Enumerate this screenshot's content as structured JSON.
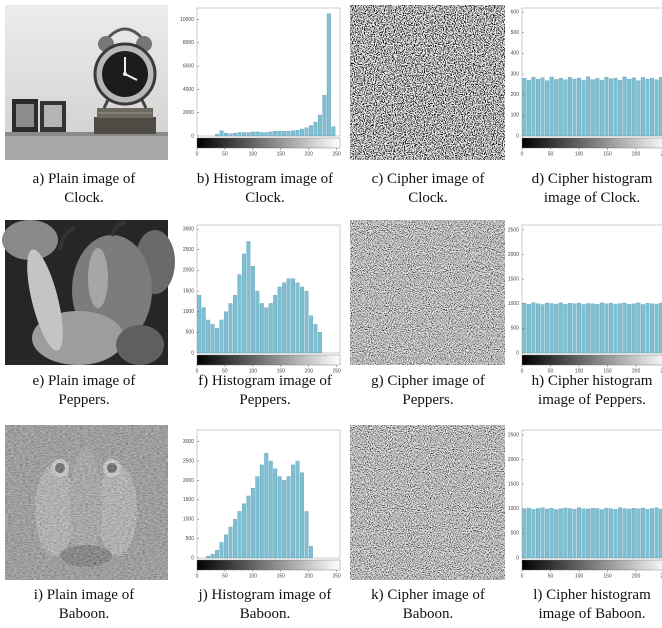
{
  "panels": [
    {
      "caption": [
        "a) Plain image of",
        "Clock."
      ]
    },
    {
      "caption": [
        "b) Histogram image of",
        "Clock."
      ],
      "chart_data": {
        "type": "histogram",
        "xlim": [
          0,
          256
        ],
        "ylim": [
          0,
          11000
        ],
        "xticks": [
          0,
          50,
          100,
          150,
          200,
          250
        ],
        "yticks": [
          0,
          2000,
          4000,
          6000,
          8000,
          10000
        ],
        "color": "#7fbfd3",
        "values": [
          0,
          0,
          0,
          0,
          150,
          450,
          250,
          200,
          250,
          300,
          300,
          300,
          350,
          350,
          300,
          300,
          350,
          400,
          400,
          400,
          400,
          450,
          500,
          600,
          700,
          900,
          1200,
          1800,
          3500,
          10500,
          800,
          0
        ]
      }
    },
    {
      "caption": [
        "c) Cipher image of",
        "Clock."
      ]
    },
    {
      "caption": [
        "d) Cipher histogram",
        "image of Clock."
      ],
      "chart_data": {
        "type": "histogram",
        "xlim": [
          0,
          256
        ],
        "ylim": [
          0,
          620
        ],
        "xticks": [
          0,
          50,
          100,
          150,
          200,
          250
        ],
        "yticks": [
          0,
          100,
          200,
          300,
          400,
          500,
          600
        ],
        "color": "#7fbfd3",
        "values": [
          280,
          270,
          285,
          275,
          282,
          268,
          286,
          274,
          280,
          272,
          284,
          276,
          281,
          269,
          287,
          273,
          279,
          271,
          285,
          277,
          280,
          270,
          286,
          275,
          282,
          268,
          284,
          276,
          280,
          272,
          285,
          278
        ]
      }
    },
    {
      "caption": [
        "e) Plain image of",
        "Peppers."
      ]
    },
    {
      "caption": [
        "f) Histogram image of",
        "Peppers."
      ],
      "chart_data": {
        "type": "histogram",
        "xlim": [
          0,
          256
        ],
        "ylim": [
          0,
          3100
        ],
        "xticks": [
          0,
          50,
          100,
          150,
          200,
          250
        ],
        "yticks": [
          0,
          500,
          1000,
          1500,
          2000,
          2500,
          3000
        ],
        "color": "#7fbfd3",
        "values": [
          1400,
          1100,
          800,
          700,
          600,
          800,
          1000,
          1200,
          1400,
          1900,
          2400,
          2700,
          2100,
          1500,
          1200,
          1100,
          1200,
          1400,
          1600,
          1700,
          1800,
          1800,
          1700,
          1600,
          1500,
          900,
          700,
          500,
          0,
          0,
          0,
          0
        ]
      }
    },
    {
      "caption": [
        "g) Cipher image of",
        "Peppers."
      ]
    },
    {
      "caption": [
        "h) Cipher histogram",
        "image of Peppers."
      ],
      "chart_data": {
        "type": "histogram",
        "xlim": [
          0,
          256
        ],
        "ylim": [
          0,
          2600
        ],
        "xticks": [
          0,
          50,
          100,
          150,
          200,
          250
        ],
        "yticks": [
          0,
          500,
          1000,
          1500,
          2000,
          2500
        ],
        "color": "#7fbfd3",
        "values": [
          1010,
          990,
          1020,
          1000,
          985,
          1015,
          1005,
          995,
          1020,
          990,
          1010,
          1000,
          1015,
          985,
          1005,
          1000,
          990,
          1020,
          1000,
          1010,
          995,
          1005,
          1015,
          990,
          1000,
          1020,
          985,
          1010,
          1000,
          995,
          1015,
          1005
        ]
      }
    },
    {
      "caption": [
        "i) Plain image of",
        "Baboon."
      ]
    },
    {
      "caption": [
        "j) Histogram image of",
        "Baboon."
      ],
      "chart_data": {
        "type": "histogram",
        "xlim": [
          0,
          256
        ],
        "ylim": [
          0,
          3300
        ],
        "xticks": [
          0,
          50,
          100,
          150,
          200,
          250
        ],
        "yticks": [
          0,
          500,
          1000,
          1500,
          2000,
          2500,
          3000
        ],
        "color": "#7fbfd3",
        "values": [
          0,
          0,
          50,
          100,
          200,
          400,
          600,
          800,
          1000,
          1200,
          1400,
          1600,
          1800,
          2100,
          2400,
          2700,
          2500,
          2300,
          2100,
          2000,
          2100,
          2400,
          2500,
          2200,
          1200,
          300,
          0,
          0,
          0,
          0,
          0,
          0
        ]
      }
    },
    {
      "caption": [
        "k) Cipher image of",
        "Baboon."
      ]
    },
    {
      "caption": [
        "l) Cipher histogram",
        "image of Baboon."
      ],
      "chart_data": {
        "type": "histogram",
        "xlim": [
          0,
          256
        ],
        "ylim": [
          0,
          2600
        ],
        "xticks": [
          0,
          50,
          100,
          150,
          200,
          250
        ],
        "yticks": [
          0,
          500,
          1000,
          1500,
          2000,
          2500
        ],
        "color": "#7fbfd3",
        "values": [
          1000,
          1015,
          990,
          1005,
          1020,
          995,
          1010,
          985,
          1000,
          1015,
          1005,
          990,
          1020,
          1000,
          995,
          1010,
          1005,
          985,
          1015,
          1000,
          990,
          1020,
          1005,
          995,
          1010,
          1000,
          1015,
          990,
          1005,
          1020,
          995,
          1000
        ]
      }
    }
  ]
}
